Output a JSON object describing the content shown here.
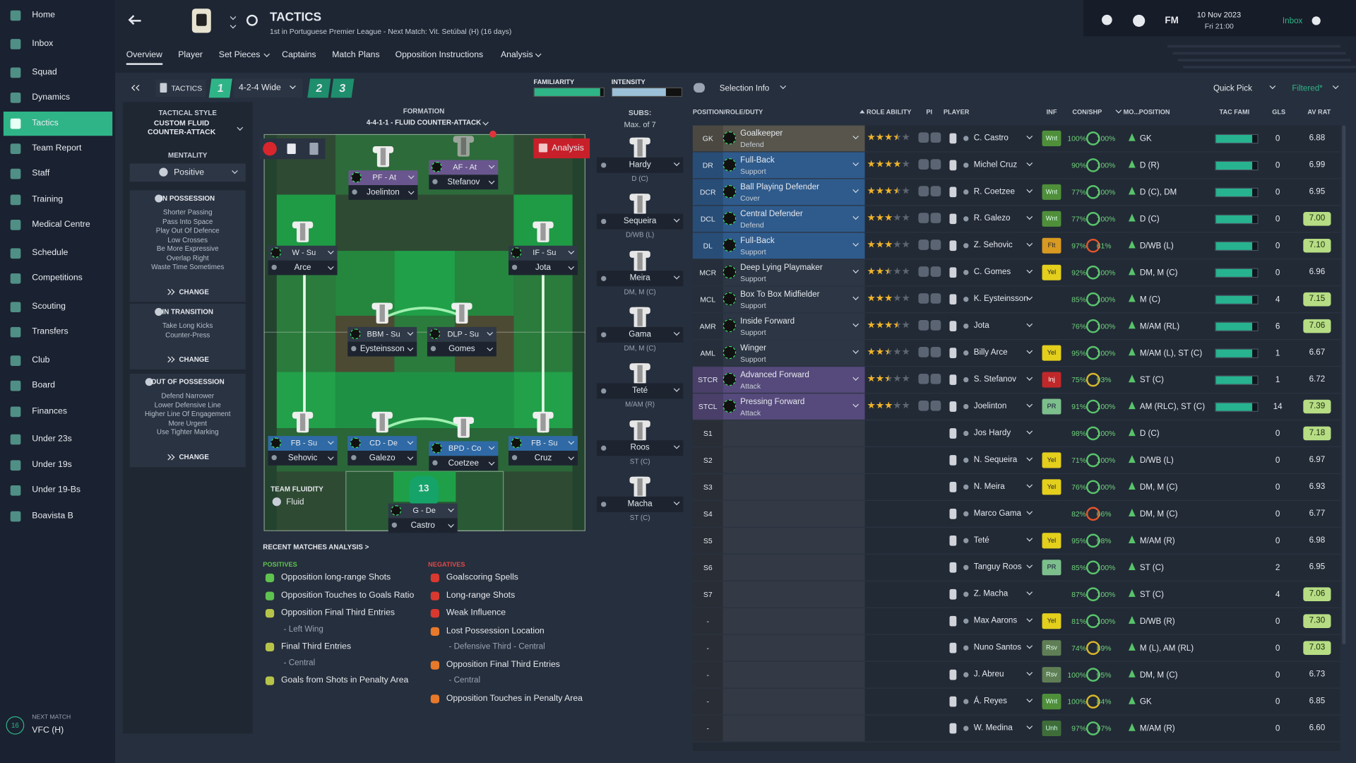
{
  "sidebar": {
    "items": [
      "Home",
      "Inbox",
      "Squad",
      "Dynamics",
      "Tactics",
      "Team Report",
      "Staff",
      "Training",
      "Medical Centre",
      "Schedule",
      "Competitions",
      "Scouting",
      "Transfers",
      "Club",
      "Board",
      "Finances",
      "Under 23s",
      "Under 19s",
      "Under 19-Bs",
      "Boavista B"
    ],
    "active": 4,
    "next_match_label": "NEXT MATCH",
    "next_match_days": "16",
    "next_match": "VFC (H)"
  },
  "header": {
    "title": "TACTICS",
    "subtitle": "1st in Portuguese Premier League - Next Match: Vit. Setúbal (H) (16 days)",
    "tabs": [
      "Overview",
      "Player",
      "Set Pieces",
      "Captains",
      "Match Plans",
      "Opposition Instructions",
      "Analysis"
    ],
    "active_tab": 0,
    "logo": "FM",
    "date": "10 Nov 2023",
    "time": "Fri 21:00",
    "inbox": "Inbox"
  },
  "toolbar": {
    "label": "TACTICS",
    "slots": [
      "1",
      "2",
      "3"
    ],
    "tactic": "4-2-4 Wide",
    "familiarity_label": "FAMILIARITY",
    "familiarity": 95,
    "intensity_label": "INTENSITY",
    "intensity": 78,
    "selection_info": "Selection Info",
    "quick_pick": "Quick Pick",
    "filter": "Filtered*"
  },
  "style_panel": {
    "tactical_style_label": "TACTICAL STYLE",
    "tactical_style": "CUSTOM FLUID COUNTER-ATTACK",
    "mentality_label": "MENTALITY",
    "mentality": "Positive",
    "sections": [
      {
        "title": "IN POSSESSION",
        "items": [
          "Shorter Passing",
          "Pass Into Space",
          "Play Out Of Defence",
          "Low Crosses",
          "Be More Expressive",
          "Overlap Right",
          "Waste Time Sometimes"
        ],
        "action": "CHANGE"
      },
      {
        "title": "IN TRANSITION",
        "items": [
          "Take Long Kicks",
          "Counter-Press"
        ],
        "action": "CHANGE"
      },
      {
        "title": "OUT OF POSSESSION",
        "items": [
          "Defend Narrower",
          "Lower Defensive Line",
          "Higher Line Of Engagement",
          "More Urgent",
          "Use Tighter Marking"
        ],
        "action": "CHANGE"
      }
    ],
    "fluidity_label": "TEAM FLUIDITY",
    "fluidity": "Fluid"
  },
  "formation": {
    "label": "FORMATION",
    "name": "4-4-1-1 - FLUID COUNTER-ATTACK",
    "analysis": "Analysis",
    "keeper_number": "13",
    "players": [
      {
        "role": "PF - At",
        "name": "Joelinton"
      },
      {
        "role": "AF - At",
        "name": "Stefanov"
      },
      {
        "role": "W - Su",
        "name": "Arce"
      },
      {
        "role": "IF - Su",
        "name": "Jota"
      },
      {
        "role": "BBM - Su",
        "name": "Eysteinsson"
      },
      {
        "role": "DLP - Su",
        "name": "Gomes"
      },
      {
        "role": "FB - Su",
        "name": "Sehovic"
      },
      {
        "role": "CD - De",
        "name": "Galezo"
      },
      {
        "role": "BPD - Co",
        "name": "Coetzee"
      },
      {
        "role": "FB - Su",
        "name": "Cruz"
      },
      {
        "role": "G - De",
        "name": "Castro"
      }
    ]
  },
  "subs": {
    "label": "SUBS:",
    "max": "Max. of 7",
    "players": [
      {
        "name": "Hardy",
        "position": "D (C)"
      },
      {
        "name": "Sequeira",
        "position": "D/WB (L)"
      },
      {
        "name": "Meira",
        "position": "DM, M (C)"
      },
      {
        "name": "Gama",
        "position": "DM, M (C)"
      },
      {
        "name": "Teté",
        "position": "M/AM (R)"
      },
      {
        "name": "Roos",
        "position": "ST (C)"
      },
      {
        "name": "Macha",
        "position": "ST (C)"
      }
    ]
  },
  "analysis": {
    "title": "RECENT MATCHES ANALYSIS >",
    "positives_label": "POSITIVES",
    "negatives_label": "NEGATIVES",
    "positives": [
      {
        "text": "Opposition long-range Shots"
      },
      {
        "text": "Opposition Touches to Goals Ratio"
      },
      {
        "text": "Opposition Final Third Entries",
        "sub": "- Left Wing"
      },
      {
        "text": "Final Third Entries",
        "sub": "- Central"
      },
      {
        "text": "Goals from Shots in Penalty Area"
      }
    ],
    "negatives": [
      {
        "text": "Goalscoring Spells"
      },
      {
        "text": "Long-range Shots"
      },
      {
        "text": "Weak Influence"
      },
      {
        "text": "Lost Possession Location",
        "sub": "- Defensive Third - Central"
      },
      {
        "text": "Opposition Final Third Entries",
        "sub": "- Central"
      },
      {
        "text": "Opposition Touches in Penalty Area"
      }
    ]
  },
  "table": {
    "columns": {
      "position_role_duty": "POSITION/ROLE/DUTY",
      "role_ability": "ROLE ABILITY",
      "pi": "PI",
      "player": "PLAYER",
      "inf": "INF",
      "con_shp": "CON/SHP",
      "mo": "MO...",
      "position": "POSITION",
      "tac_fami": "TAC FAMI",
      "gls": "GLS",
      "av_rat": "AV RAT"
    },
    "rows": [
      {
        "pos": "GK",
        "role": "Goalkeeper",
        "duty": "Defend",
        "stars": 3.5,
        "player": "C. Castro",
        "inf": "Wnt",
        "con": "100%",
        "shp": "100%",
        "position": "GK",
        "tac_fami": 88,
        "gls": "0",
        "av_rat": "6.88"
      },
      {
        "pos": "DR",
        "role": "Full-Back",
        "duty": "Support",
        "stars": 4,
        "player": "Michel Cruz",
        "con": "90%",
        "shp": "100%",
        "position": "D (R)",
        "tac_fami": 88,
        "gls": "0",
        "av_rat": "6.99"
      },
      {
        "pos": "DCR",
        "role": "Ball Playing Defender",
        "duty": "Cover",
        "stars": 3.5,
        "player": "R. Coetzee",
        "inf": "Wnt",
        "con": "77%",
        "shp": "100%",
        "position": "D (C), DM",
        "tac_fami": 88,
        "gls": "0",
        "av_rat": "6.95"
      },
      {
        "pos": "DCL",
        "role": "Central Defender",
        "duty": "Defend",
        "stars": 3,
        "player": "R. Galezo",
        "inf": "Wnt",
        "con": "77%",
        "shp": "100%",
        "position": "D (C)",
        "tac_fami": 88,
        "gls": "0",
        "av_rat": "7.00"
      },
      {
        "pos": "DL",
        "role": "Full-Back",
        "duty": "Support",
        "stars": 3,
        "player": "Z. Sehovic",
        "inf": "FIt",
        "con": "97%",
        "shp": "61%",
        "position": "D/WB (L)",
        "tac_fami": 88,
        "gls": "0",
        "av_rat": "7.10"
      },
      {
        "pos": "MCR",
        "role": "Deep Lying Playmaker",
        "duty": "Support",
        "stars": 2.5,
        "player": "C. Gomes",
        "inf": "Yel",
        "con": "92%",
        "shp": "100%",
        "position": "DM, M (C)",
        "tac_fami": 88,
        "gls": "0",
        "av_rat": "6.96"
      },
      {
        "pos": "MCL",
        "role": "Box To Box Midfielder",
        "duty": "Support",
        "stars": 3,
        "player": "K. Eysteinsson",
        "con": "85%",
        "shp": "100%",
        "position": "M (C)",
        "tac_fami": 88,
        "gls": "4",
        "av_rat": "7.15"
      },
      {
        "pos": "AMR",
        "role": "Inside Forward",
        "duty": "Support",
        "stars": 3.5,
        "player": "Jota",
        "con": "76%",
        "shp": "100%",
        "position": "M/AM (RL)",
        "tac_fami": 88,
        "gls": "6",
        "av_rat": "7.06"
      },
      {
        "pos": "AML",
        "role": "Winger",
        "duty": "Support",
        "stars": 2.5,
        "player": "Billy Arce",
        "inf": "Yel",
        "con": "95%",
        "shp": "100%",
        "position": "M/AM (L), ST (C)",
        "tac_fami": 88,
        "gls": "1",
        "av_rat": "6.67"
      },
      {
        "pos": "STCR",
        "role": "Advanced Forward",
        "duty": "Attack",
        "stars": 2.5,
        "player": "S. Stefanov",
        "inf": "Inj",
        "con": "75%",
        "shp": "93%",
        "position": "ST (C)",
        "tac_fami": 88,
        "gls": "1",
        "av_rat": "6.72"
      },
      {
        "pos": "STCL",
        "role": "Pressing Forward",
        "duty": "Attack",
        "stars": 3,
        "player": "Joelinton",
        "inf": "PR",
        "con": "91%",
        "shp": "100%",
        "position": "AM (RLC), ST (C)",
        "tac_fami": 88,
        "gls": "14",
        "av_rat": "7.39"
      },
      {
        "pos": "S1",
        "player": "Jos Hardy",
        "con": "98%",
        "shp": "100%",
        "position": "D (C)",
        "gls": "0",
        "av_rat": "7.18"
      },
      {
        "pos": "S2",
        "player": "N. Sequeira",
        "inf": "Yel",
        "con": "71%",
        "shp": "100%",
        "position": "D/WB (L)",
        "gls": "0",
        "av_rat": "6.97"
      },
      {
        "pos": "S3",
        "player": "N. Meira",
        "inf": "Yel",
        "con": "76%",
        "shp": "100%",
        "position": "DM, M (C)",
        "gls": "0",
        "av_rat": "6.93"
      },
      {
        "pos": "S4",
        "player": "Marco Gama",
        "con": "82%",
        "shp": "66%",
        "position": "DM, M (C)",
        "gls": "0",
        "av_rat": "6.77"
      },
      {
        "pos": "S5",
        "player": "Teté",
        "inf": "Yel",
        "con": "95%",
        "shp": "98%",
        "position": "M/AM (R)",
        "gls": "0",
        "av_rat": "6.98"
      },
      {
        "pos": "S6",
        "player": "Tanguy Roos",
        "inf": "PR",
        "con": "85%",
        "shp": "100%",
        "position": "ST (C)",
        "gls": "2",
        "av_rat": "6.95"
      },
      {
        "pos": "S7",
        "player": "Z. Macha",
        "con": "87%",
        "shp": "100%",
        "position": "ST (C)",
        "gls": "4",
        "av_rat": "7.06"
      },
      {
        "pos": "-",
        "player": "Max Aarons",
        "inf": "Yel",
        "con": "81%",
        "shp": "100%",
        "position": "D/WB (R)",
        "gls": "0",
        "av_rat": "7.30"
      },
      {
        "pos": "-",
        "player": "Nuno Santos",
        "inf": "Rsv",
        "con": "74%",
        "shp": "89%",
        "position": "M (L), AM (RL)",
        "gls": "0",
        "av_rat": "7.03"
      },
      {
        "pos": "-",
        "player": "J. Abreu",
        "inf": "Rsv",
        "con": "100%",
        "shp": "95%",
        "position": "DM, M (C)",
        "gls": "0",
        "av_rat": "6.73"
      },
      {
        "pos": "-",
        "player": "Á. Reyes",
        "inf": "Wnt",
        "con": "100%",
        "shp": "84%",
        "position": "GK",
        "gls": "0",
        "av_rat": "6.85"
      },
      {
        "pos": "-",
        "player": "W. Medina",
        "inf": "Unh",
        "con": "97%",
        "shp": "97%",
        "position": "M/AM (R)",
        "gls": "0",
        "av_rat": "6.60"
      }
    ]
  }
}
